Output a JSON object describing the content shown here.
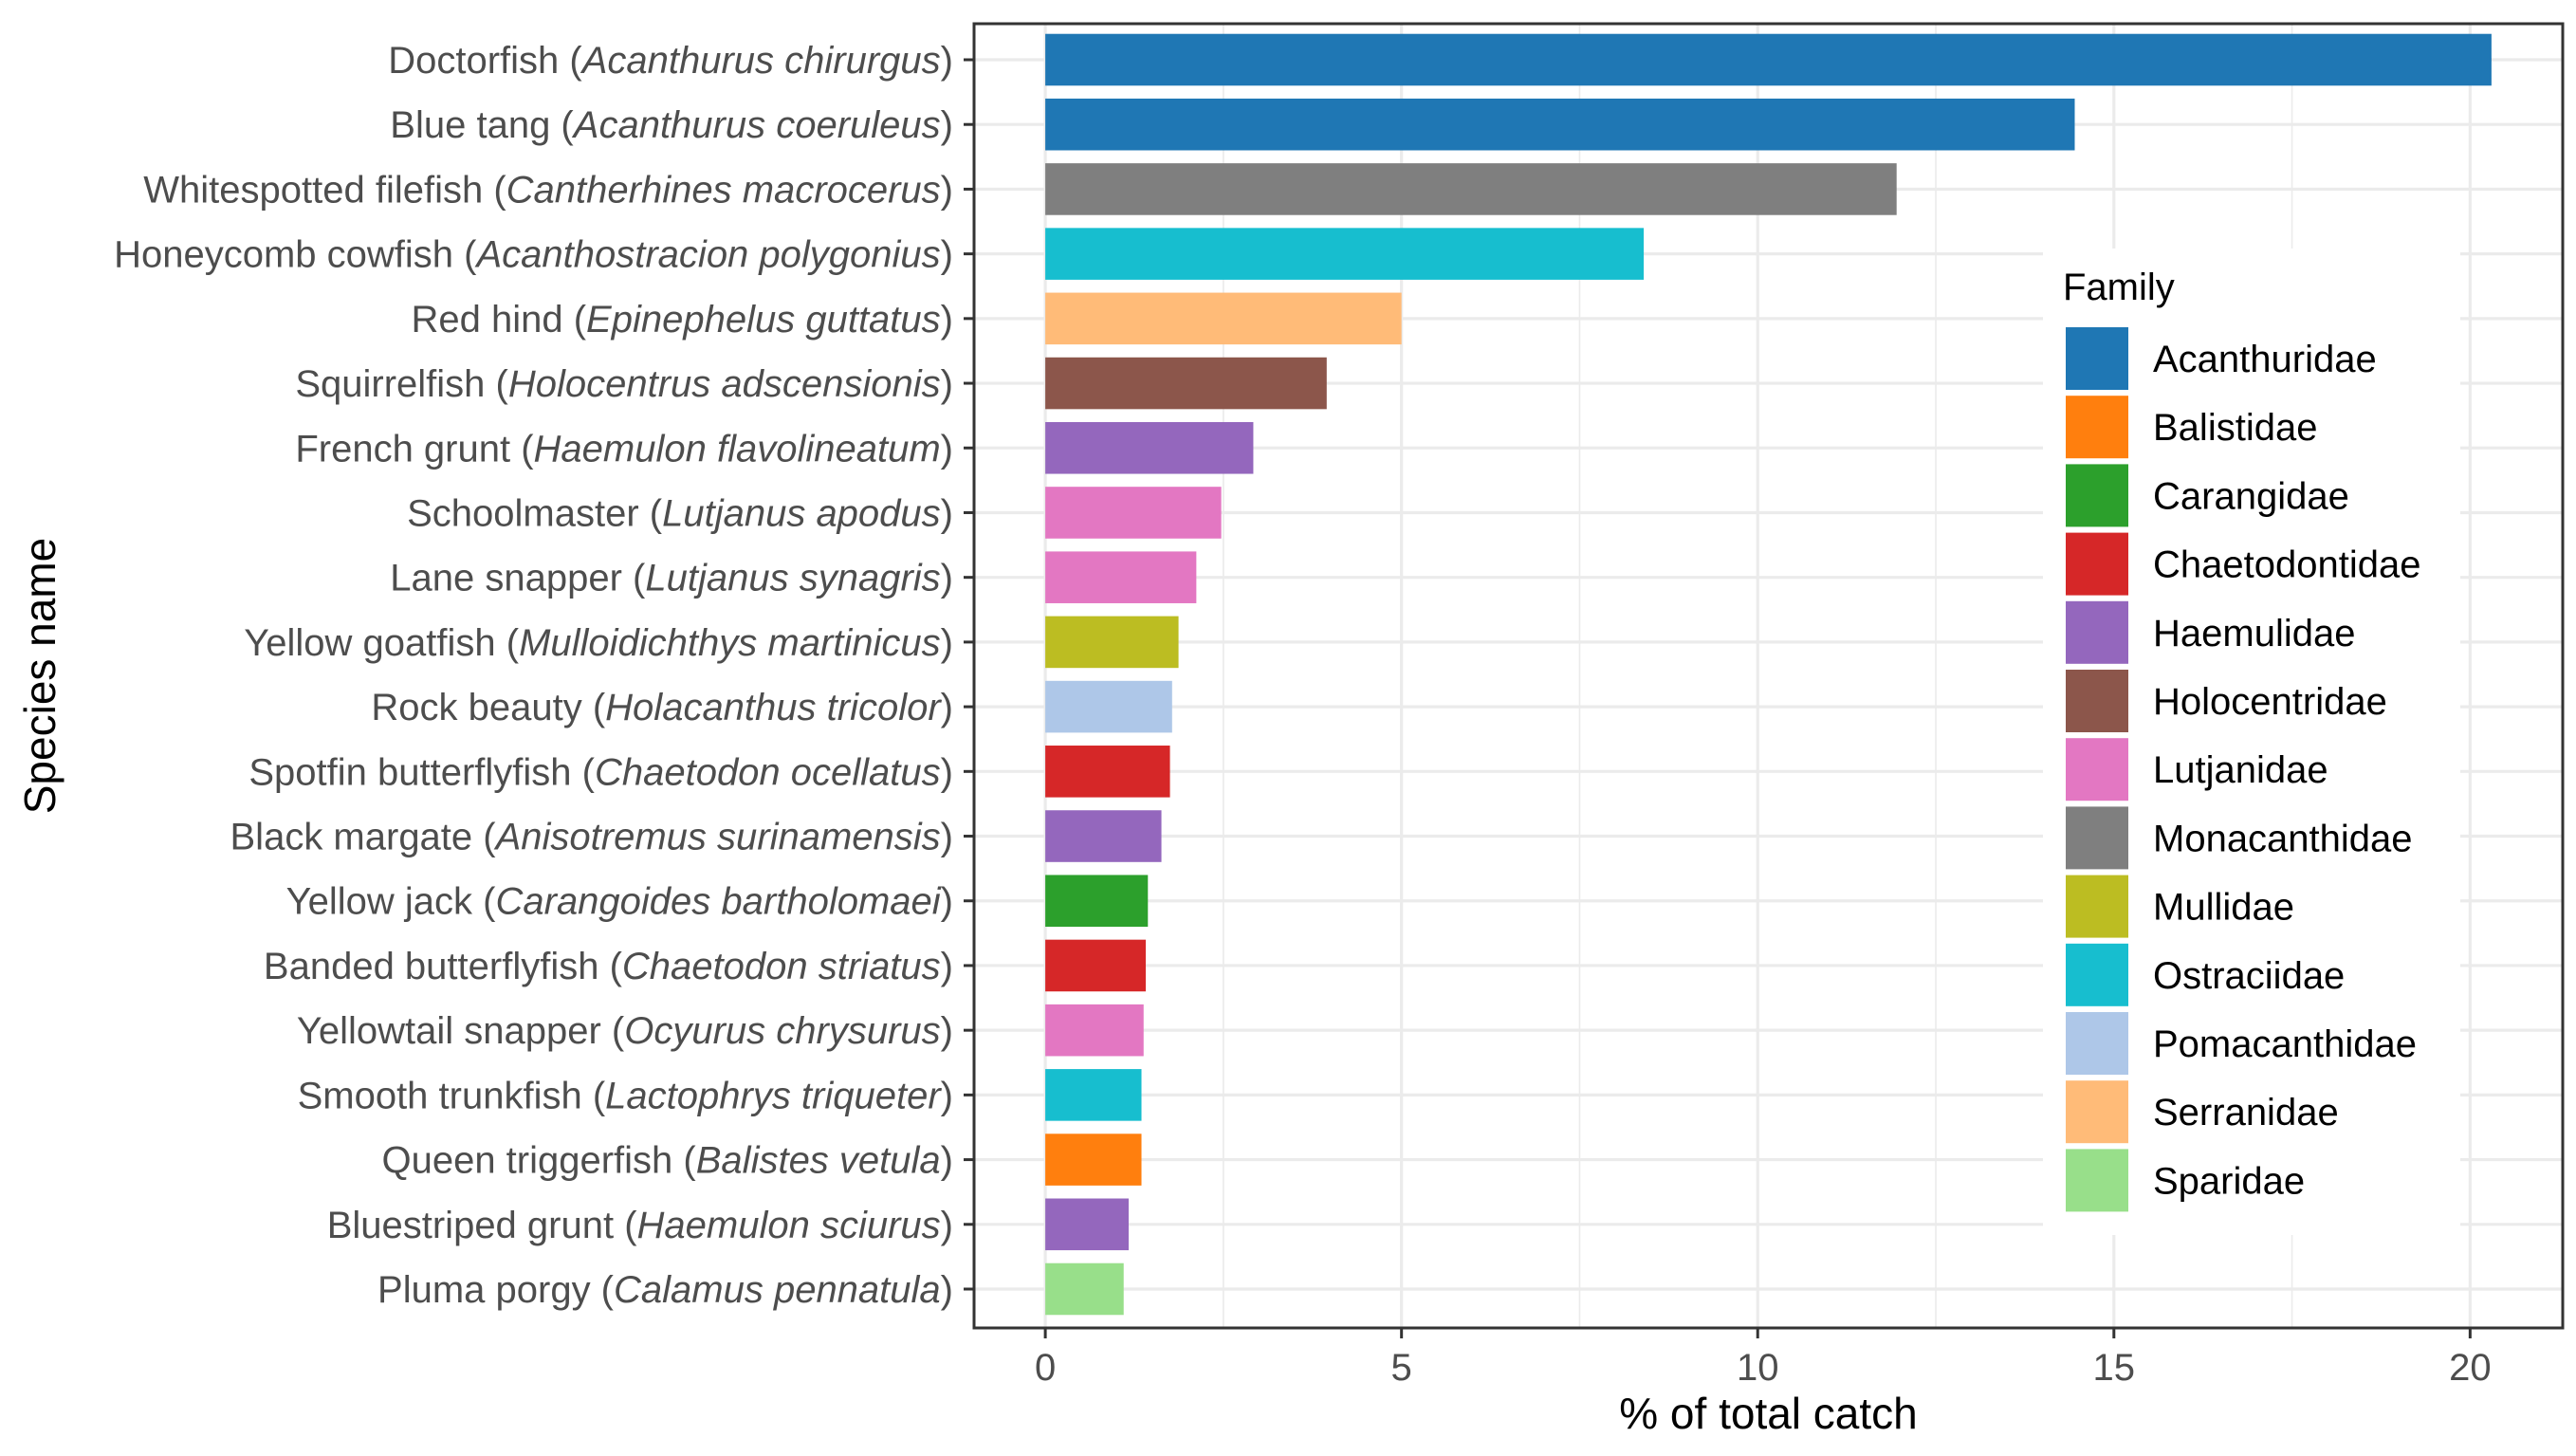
{
  "chart_data": {
    "type": "bar",
    "orientation": "horizontal",
    "xlabel": "% of total catch",
    "ylabel": "Species name",
    "xlim": [
      -1,
      21.3
    ],
    "xticks": [
      0,
      5,
      10,
      15,
      20
    ],
    "grid": true,
    "legend": {
      "title": "Family",
      "placement": "inside-right",
      "entries": [
        {
          "label": "Acanthuridae",
          "color": "#1f77b4"
        },
        {
          "label": "Balistidae",
          "color": "#ff7f0e"
        },
        {
          "label": "Carangidae",
          "color": "#2ca02c"
        },
        {
          "label": "Chaetodontidae",
          "color": "#d62728"
        },
        {
          "label": "Haemulidae",
          "color": "#9467bd"
        },
        {
          "label": "Holocentridae",
          "color": "#8c564b"
        },
        {
          "label": "Lutjanidae",
          "color": "#e377c2"
        },
        {
          "label": "Monacanthidae",
          "color": "#7f7f7f"
        },
        {
          "label": "Mullidae",
          "color": "#bcbd22"
        },
        {
          "label": "Ostraciidae",
          "color": "#17becf"
        },
        {
          "label": "Pomacanthidae",
          "color": "#aec7e8"
        },
        {
          "label": "Serranidae",
          "color": "#ffbb78"
        },
        {
          "label": "Sparidae",
          "color": "#98df8a"
        }
      ]
    },
    "bars": [
      {
        "common": "Doctorfish",
        "sci": "Acanthurus chirurgus",
        "family": "Acanthuridae",
        "value": 20.3
      },
      {
        "common": "Blue tang",
        "sci": "Acanthurus coeruleus",
        "family": "Acanthuridae",
        "value": 14.45
      },
      {
        "common": "Whitespotted filefish",
        "sci": "Cantherhines macrocerus",
        "family": "Monacanthidae",
        "value": 11.95
      },
      {
        "common": "Honeycomb cowfish",
        "sci": "Acanthostracion polygonius",
        "family": "Ostraciidae",
        "value": 8.4
      },
      {
        "common": "Red hind",
        "sci": "Epinephelus guttatus",
        "family": "Serranidae",
        "value": 5.0
      },
      {
        "common": "Squirrelfish",
        "sci": "Holocentrus adscensionis",
        "family": "Holocentridae",
        "value": 3.95
      },
      {
        "common": "French grunt",
        "sci": "Haemulon flavolineatum",
        "family": "Haemulidae",
        "value": 2.92
      },
      {
        "common": "Schoolmaster",
        "sci": "Lutjanus apodus",
        "family": "Lutjanidae",
        "value": 2.47
      },
      {
        "common": "Lane snapper",
        "sci": "Lutjanus synagris",
        "family": "Lutjanidae",
        "value": 2.12
      },
      {
        "common": "Yellow goatfish",
        "sci": "Mulloidichthys martinicus",
        "family": "Mullidae",
        "value": 1.87
      },
      {
        "common": "Rock beauty",
        "sci": "Holacanthus tricolor",
        "family": "Pomacanthidae",
        "value": 1.78
      },
      {
        "common": "Spotfin butterflyfish",
        "sci": "Chaetodon ocellatus",
        "family": "Chaetodontidae",
        "value": 1.75
      },
      {
        "common": "Black margate",
        "sci": "Anisotremus surinamensis",
        "family": "Haemulidae",
        "value": 1.63
      },
      {
        "common": "Yellow jack",
        "sci": "Carangoides bartholomaei",
        "family": "Carangidae",
        "value": 1.44
      },
      {
        "common": "Banded butterflyfish",
        "sci": "Chaetodon striatus",
        "family": "Chaetodontidae",
        "value": 1.41
      },
      {
        "common": "Yellowtail snapper",
        "sci": "Ocyurus chrysurus",
        "family": "Lutjanidae",
        "value": 1.38
      },
      {
        "common": "Smooth trunkfish",
        "sci": "Lactophrys triqueter",
        "family": "Ostraciidae",
        "value": 1.35
      },
      {
        "common": "Queen triggerfish",
        "sci": "Balistes vetula",
        "family": "Balistidae",
        "value": 1.35
      },
      {
        "common": "Bluestriped grunt",
        "sci": "Haemulon sciurus",
        "family": "Haemulidae",
        "value": 1.17
      },
      {
        "common": "Pluma porgy",
        "sci": "Calamus pennatula",
        "family": "Sparidae",
        "value": 1.1
      }
    ]
  }
}
